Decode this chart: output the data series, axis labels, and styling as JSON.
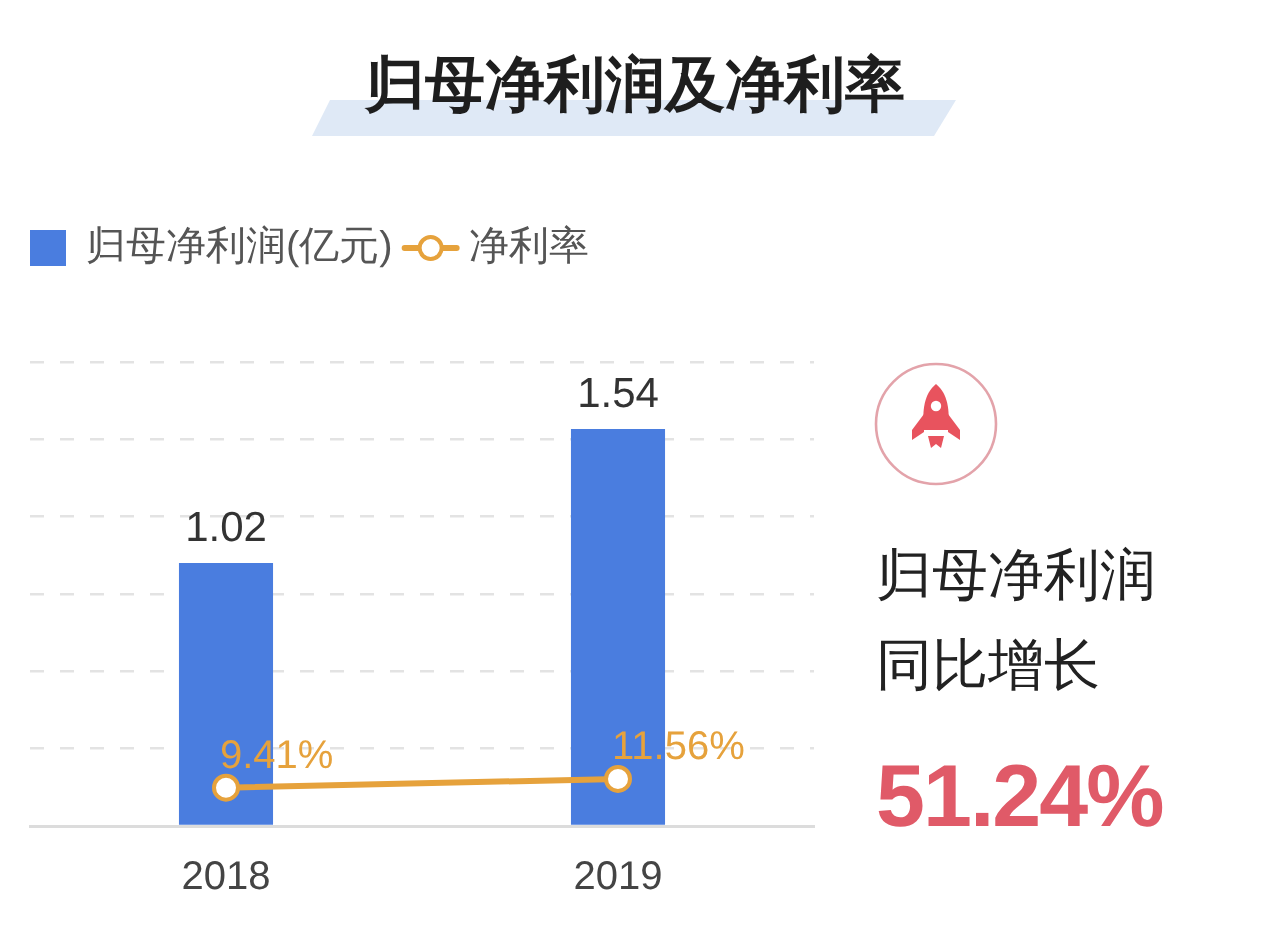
{
  "chart_data": [
    {
      "type": "bar",
      "title": "归母净利润及净利率",
      "categories": [
        "2018",
        "2019"
      ],
      "series": [
        {
          "name": "归母净利润(亿元)",
          "type": "bar",
          "color": "#4a7ddf",
          "values": [
            1.02,
            1.54
          ],
          "value_labels": [
            "1.02",
            "1.54"
          ]
        },
        {
          "name": "净利率",
          "type": "line",
          "axis": "y2",
          "color": "#e6a23c",
          "values": [
            9.41,
            11.56
          ],
          "value_labels": [
            "9.41%",
            "11.56%"
          ]
        }
      ],
      "ylim": [
        0,
        1.8
      ],
      "yticks": [
        0,
        0.3,
        0.6,
        0.9,
        1.2,
        1.5,
        1.8
      ],
      "y2lim": [
        0,
        114
      ],
      "grid": "y",
      "legend": "top left",
      "tick_labels": "x",
      "marker": "circle",
      "line_style": "solid"
    },
    {
      "type": "other",
      "annotations": [
        "归母净利润同比增长",
        "51.24%"
      ]
    }
  ]
}
